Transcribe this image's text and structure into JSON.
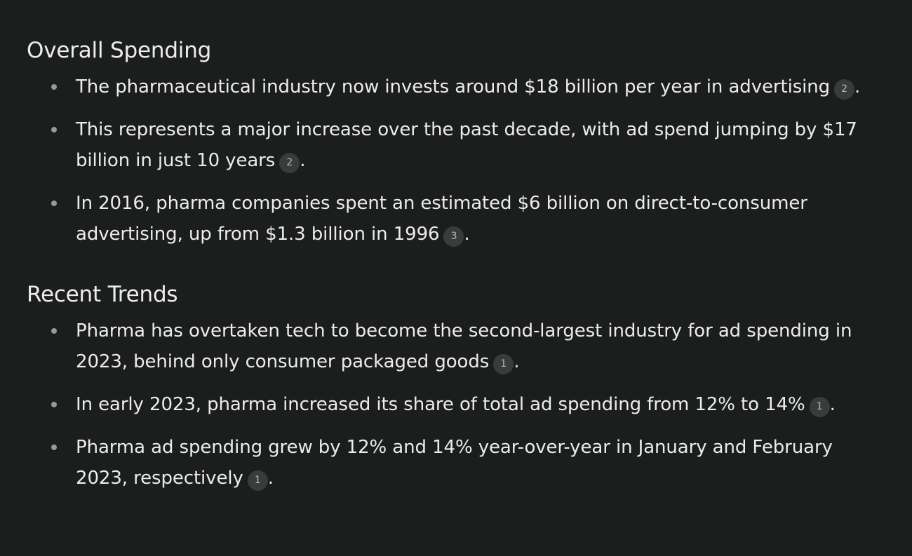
{
  "sections": [
    {
      "heading": "Overall Spending",
      "items": [
        {
          "text": "The pharmaceutical industry now invests around $18 billion per year in advertising",
          "cite": "2",
          "end": "."
        },
        {
          "text": "This represents a major increase over the past decade, with ad spend jumping by $17 billion in just 10 years",
          "cite": "2",
          "end": "."
        },
        {
          "text": "In 2016, pharma companies spent an estimated $6 billion on direct-to-consumer advertising, up from $1.3 billion in 1996",
          "cite": "3",
          "end": "."
        }
      ]
    },
    {
      "heading": "Recent Trends",
      "items": [
        {
          "text": "Pharma has overtaken tech to become the second-largest industry for ad spending in 2023, behind only consumer packaged goods",
          "cite": "1",
          "end": "."
        },
        {
          "text": "In early 2023, pharma increased its share of total ad spending from 12% to 14%",
          "cite": "1",
          "end": "."
        },
        {
          "text": "Pharma ad spending grew by 12% and 14% year-over-year in January and February 2023, respectively",
          "cite": "1",
          "end": "."
        }
      ]
    }
  ],
  "colors": {
    "background": "#1c1d1d",
    "text": "#ececec",
    "bullet": "#9a9a9a",
    "citation_bg": "#3a3b3b"
  }
}
